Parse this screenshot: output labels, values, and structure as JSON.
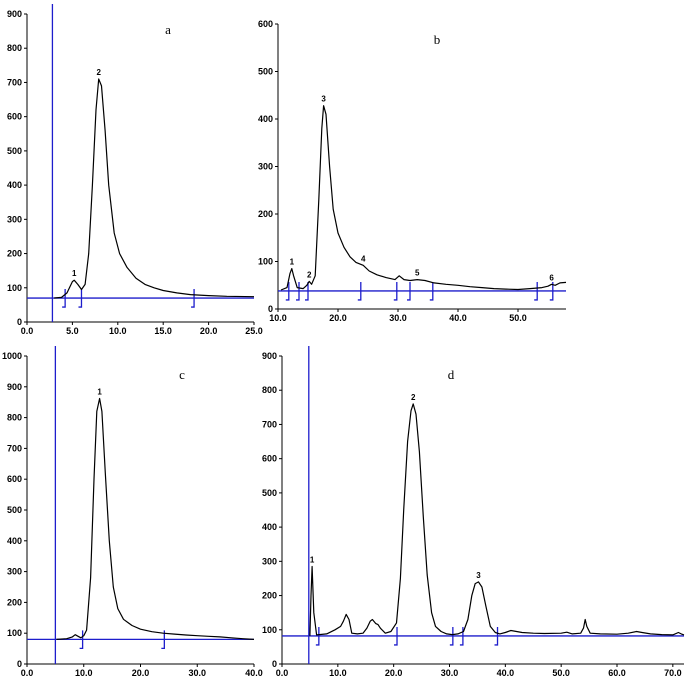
{
  "colors": {
    "trace": "#000000",
    "baseline": "#1d1dcc",
    "axis": "#000000"
  },
  "chart_data": [
    {
      "id": "a",
      "type": "line",
      "letter": "a",
      "xlim": [
        0,
        25
      ],
      "ylim": [
        0,
        900
      ],
      "xticks": [
        0,
        5,
        10,
        15,
        20,
        25
      ],
      "xtick_labels": [
        "0.0",
        "5.0",
        "10.0",
        "15.0",
        "20.0",
        "25.0"
      ],
      "yticks": [
        0,
        100,
        200,
        300,
        400,
        500,
        600,
        700,
        800,
        900
      ],
      "ytick_labels": [
        "0",
        "100",
        "200",
        "300",
        "400",
        "500",
        "600",
        "700",
        "800",
        "900"
      ],
      "marker_x": 2.8,
      "baseline_y": 70,
      "baseline_marks": [
        4.2,
        6.0,
        18.4
      ],
      "peaks": [
        {
          "label": "1",
          "x": 5.2,
          "y": 122
        },
        {
          "label": "2",
          "x": 7.9,
          "y": 710
        }
      ],
      "trace": [
        [
          3.0,
          70
        ],
        [
          3.8,
          72
        ],
        [
          4.4,
          85
        ],
        [
          5.0,
          118
        ],
        [
          5.2,
          122
        ],
        [
          5.6,
          110
        ],
        [
          6.0,
          95
        ],
        [
          6.4,
          110
        ],
        [
          6.8,
          200
        ],
        [
          7.2,
          400
        ],
        [
          7.6,
          620
        ],
        [
          7.9,
          710
        ],
        [
          8.2,
          690
        ],
        [
          8.6,
          560
        ],
        [
          9.0,
          400
        ],
        [
          9.6,
          260
        ],
        [
          10.2,
          200
        ],
        [
          11.0,
          160
        ],
        [
          12.0,
          128
        ],
        [
          13.0,
          110
        ],
        [
          14.0,
          100
        ],
        [
          15.0,
          92
        ],
        [
          16.5,
          85
        ],
        [
          18.0,
          80
        ],
        [
          20.0,
          77
        ],
        [
          22.0,
          75
        ],
        [
          25.0,
          74
        ]
      ]
    },
    {
      "id": "b",
      "type": "line",
      "letter": "b",
      "xlim": [
        10,
        58
      ],
      "ylim": [
        0,
        600
      ],
      "xticks": [
        10,
        20,
        30,
        40,
        50
      ],
      "xtick_labels": [
        "10.0",
        "20.0",
        "30.0",
        "40.0",
        "50.0"
      ],
      "yticks": [
        0,
        100,
        200,
        300,
        400,
        500,
        600
      ],
      "ytick_labels": [
        "0",
        "100",
        "200",
        "300",
        "400",
        "500",
        "600"
      ],
      "baseline_y": 38,
      "baseline_marks": [
        11.8,
        13.5,
        15.0,
        23.8,
        29.8,
        32.0,
        35.8,
        53.2,
        55.8
      ],
      "peaks": [
        {
          "label": "1",
          "x": 12.3,
          "y": 85
        },
        {
          "label": "2",
          "x": 15.2,
          "y": 58
        },
        {
          "label": "3",
          "x": 17.6,
          "y": 428
        },
        {
          "label": "4",
          "x": 24.2,
          "y": 92
        },
        {
          "label": "5",
          "x": 33.2,
          "y": 62
        },
        {
          "label": "6",
          "x": 55.6,
          "y": 52
        }
      ],
      "trace": [
        [
          10.5,
          40
        ],
        [
          11.5,
          45
        ],
        [
          12.0,
          75
        ],
        [
          12.3,
          85
        ],
        [
          12.6,
          70
        ],
        [
          13.2,
          45
        ],
        [
          14.2,
          43
        ],
        [
          14.8,
          50
        ],
        [
          15.2,
          58
        ],
        [
          15.6,
          52
        ],
        [
          16.2,
          70
        ],
        [
          16.8,
          230
        ],
        [
          17.3,
          380
        ],
        [
          17.6,
          428
        ],
        [
          18.0,
          410
        ],
        [
          18.6,
          300
        ],
        [
          19.2,
          210
        ],
        [
          20.0,
          160
        ],
        [
          21.0,
          130
        ],
        [
          22.0,
          110
        ],
        [
          23.0,
          98
        ],
        [
          24.2,
          92
        ],
        [
          25.2,
          80
        ],
        [
          26.5,
          72
        ],
        [
          28.0,
          66
        ],
        [
          29.5,
          62
        ],
        [
          30.2,
          70
        ],
        [
          31.0,
          62
        ],
        [
          32.0,
          60
        ],
        [
          33.2,
          62
        ],
        [
          34.5,
          60
        ],
        [
          36.0,
          55
        ],
        [
          38.0,
          52
        ],
        [
          40.0,
          50
        ],
        [
          42.0,
          47
        ],
        [
          44.0,
          45
        ],
        [
          46.0,
          43
        ],
        [
          48.0,
          42
        ],
        [
          50.0,
          41
        ],
        [
          52.0,
          43
        ],
        [
          54.0,
          45
        ],
        [
          55.0,
          48
        ],
        [
          55.6,
          52
        ],
        [
          56.2,
          50
        ],
        [
          57.0,
          55
        ],
        [
          58.0,
          56
        ]
      ]
    },
    {
      "id": "c",
      "type": "line",
      "letter": "c",
      "xlim": [
        0,
        40
      ],
      "ylim": [
        0,
        1000
      ],
      "xticks": [
        0,
        10,
        20,
        30,
        40
      ],
      "xtick_labels": [
        "0.0",
        "10.0",
        "20.0",
        "30.0",
        "40.0"
      ],
      "yticks": [
        0,
        100,
        200,
        300,
        400,
        500,
        600,
        700,
        800,
        900,
        1000
      ],
      "ytick_labels": [
        "0",
        "100",
        "200",
        "300",
        "400",
        "500",
        "600",
        "700",
        "800",
        "900",
        "1000"
      ],
      "marker_x": 5.0,
      "baseline_y": 80,
      "baseline_marks": [
        9.8,
        24.2
      ],
      "peaks": [
        {
          "label": "1",
          "x": 12.8,
          "y": 862
        }
      ],
      "trace": [
        [
          5.2,
          80
        ],
        [
          7.0,
          82
        ],
        [
          8.0,
          88
        ],
        [
          8.5,
          95
        ],
        [
          9.0,
          90
        ],
        [
          9.5,
          85
        ],
        [
          10.0,
          92
        ],
        [
          10.5,
          110
        ],
        [
          11.2,
          280
        ],
        [
          11.8,
          600
        ],
        [
          12.3,
          820
        ],
        [
          12.8,
          862
        ],
        [
          13.2,
          820
        ],
        [
          13.8,
          620
        ],
        [
          14.5,
          400
        ],
        [
          15.2,
          250
        ],
        [
          16.0,
          180
        ],
        [
          17.0,
          145
        ],
        [
          18.5,
          125
        ],
        [
          20.0,
          113
        ],
        [
          22.0,
          105
        ],
        [
          24.0,
          100
        ],
        [
          26.0,
          97
        ],
        [
          28.0,
          94
        ],
        [
          30.0,
          92
        ],
        [
          32.0,
          90
        ],
        [
          34.0,
          88
        ],
        [
          36.0,
          85
        ],
        [
          38.0,
          82
        ],
        [
          40.0,
          80
        ]
      ]
    },
    {
      "id": "d",
      "type": "line",
      "letter": "d",
      "xlim": [
        0,
        72
      ],
      "ylim": [
        0,
        900
      ],
      "xticks": [
        0,
        10,
        20,
        30,
        40,
        50,
        60,
        70
      ],
      "xtick_labels": [
        "0.0",
        "10.0",
        "20.0",
        "30.0",
        "40.0",
        "50.0",
        "60.0",
        "70.0"
      ],
      "yticks": [
        0,
        100,
        200,
        300,
        400,
        500,
        600,
        700,
        800,
        900
      ],
      "ytick_labels": [
        "0",
        "100",
        "200",
        "300",
        "400",
        "500",
        "600",
        "700",
        "800",
        "900"
      ],
      "marker_x": 4.8,
      "baseline_y": 82,
      "baseline_marks": [
        6.6,
        20.6,
        30.6,
        32.4,
        38.6
      ],
      "peaks": [
        {
          "label": "1",
          "x": 5.4,
          "y": 285
        },
        {
          "label": "2",
          "x": 23.5,
          "y": 760
        },
        {
          "label": "3",
          "x": 35.2,
          "y": 240
        }
      ],
      "trace": [
        [
          5.0,
          82
        ],
        [
          5.2,
          200
        ],
        [
          5.4,
          285
        ],
        [
          5.7,
          150
        ],
        [
          6.2,
          85
        ],
        [
          8.0,
          88
        ],
        [
          9.5,
          100
        ],
        [
          10.5,
          110
        ],
        [
          11.0,
          125
        ],
        [
          11.5,
          145
        ],
        [
          12.0,
          130
        ],
        [
          12.5,
          90
        ],
        [
          13.5,
          88
        ],
        [
          14.5,
          90
        ],
        [
          15.2,
          105
        ],
        [
          15.8,
          125
        ],
        [
          16.2,
          130
        ],
        [
          16.8,
          118
        ],
        [
          17.2,
          115
        ],
        [
          17.6,
          105
        ],
        [
          18.5,
          90
        ],
        [
          19.5,
          95
        ],
        [
          20.5,
          120
        ],
        [
          21.2,
          250
        ],
        [
          21.8,
          450
        ],
        [
          22.5,
          650
        ],
        [
          23.1,
          740
        ],
        [
          23.5,
          760
        ],
        [
          24.0,
          730
        ],
        [
          24.6,
          620
        ],
        [
          25.3,
          430
        ],
        [
          26.0,
          260
        ],
        [
          26.8,
          150
        ],
        [
          27.5,
          110
        ],
        [
          28.5,
          95
        ],
        [
          29.5,
          88
        ],
        [
          30.5,
          86
        ],
        [
          31.5,
          88
        ],
        [
          32.5,
          95
        ],
        [
          33.3,
          130
        ],
        [
          34.0,
          200
        ],
        [
          34.6,
          235
        ],
        [
          35.2,
          240
        ],
        [
          35.8,
          225
        ],
        [
          36.5,
          170
        ],
        [
          37.3,
          110
        ],
        [
          38.2,
          92
        ],
        [
          39.0,
          88
        ],
        [
          40.0,
          92
        ],
        [
          41.0,
          98
        ],
        [
          42.0,
          95
        ],
        [
          43.0,
          92
        ],
        [
          45.0,
          90
        ],
        [
          47.0,
          89
        ],
        [
          50.0,
          90
        ],
        [
          51.0,
          93
        ],
        [
          52.0,
          88
        ],
        [
          53.5,
          90
        ],
        [
          54.0,
          105
        ],
        [
          54.3,
          130
        ],
        [
          54.6,
          110
        ],
        [
          55.2,
          90
        ],
        [
          57.0,
          88
        ],
        [
          60.0,
          87
        ],
        [
          62.0,
          90
        ],
        [
          63.5,
          95
        ],
        [
          64.5,
          92
        ],
        [
          66.0,
          88
        ],
        [
          68.0,
          86
        ],
        [
          70.0,
          85
        ],
        [
          71.0,
          92
        ],
        [
          71.5,
          88
        ],
        [
          72.0,
          85
        ]
      ]
    }
  ]
}
